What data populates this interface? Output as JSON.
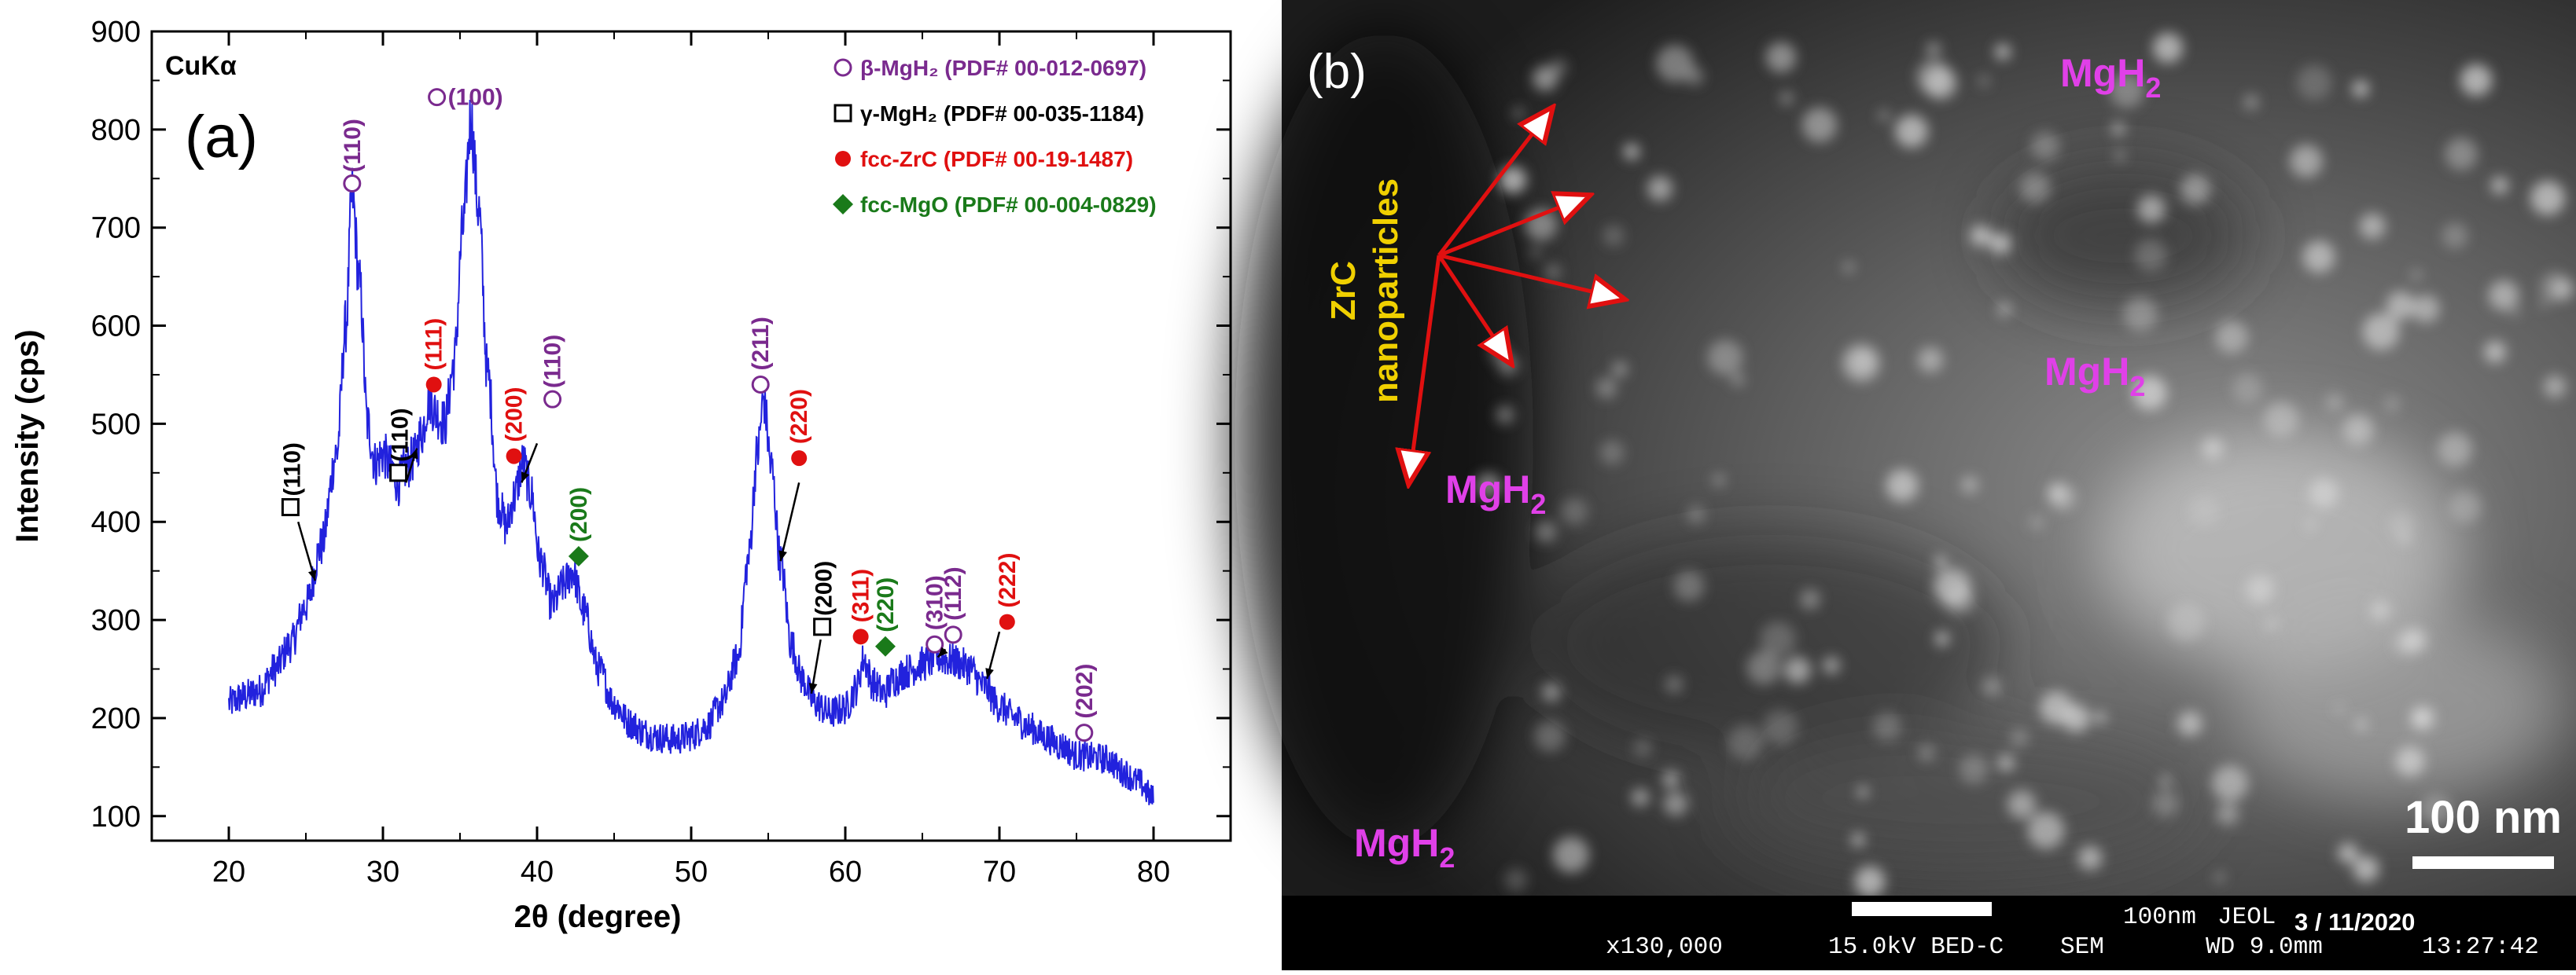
{
  "chart_data": {
    "type": "line",
    "panel_label": "(a)",
    "source_label": "CuKα",
    "xlabel": "2θ (degree)",
    "ylabel": "Intensity (cps)",
    "xlim": [
      15,
      85
    ],
    "ylim": [
      75,
      900
    ],
    "xticks": [
      20,
      30,
      40,
      50,
      60,
      70,
      80
    ],
    "yticks": [
      100,
      200,
      300,
      400,
      500,
      600,
      700,
      800,
      900
    ],
    "grid": false,
    "series_color": "#2222dd",
    "anchors": [
      [
        20,
        215
      ],
      [
        21,
        222
      ],
      [
        22,
        228
      ],
      [
        23,
        250
      ],
      [
        24,
        275
      ],
      [
        25,
        315
      ],
      [
        26,
        375
      ],
      [
        27,
        470
      ],
      [
        27.6,
        600
      ],
      [
        28,
        735
      ],
      [
        28.5,
        640
      ],
      [
        29,
        500
      ],
      [
        29.5,
        460
      ],
      [
        30,
        470
      ],
      [
        30.5,
        455
      ],
      [
        31,
        440
      ],
      [
        31.5,
        455
      ],
      [
        32,
        465
      ],
      [
        32.5,
        490
      ],
      [
        33,
        525
      ],
      [
        33.5,
        510
      ],
      [
        34,
        500
      ],
      [
        34.6,
        560
      ],
      [
        35.2,
        700
      ],
      [
        35.7,
        810
      ],
      [
        36.2,
        720
      ],
      [
        36.8,
        550
      ],
      [
        37.5,
        420
      ],
      [
        38,
        395
      ],
      [
        38.5,
        425
      ],
      [
        39.1,
        460
      ],
      [
        39.6,
        430
      ],
      [
        40.2,
        360
      ],
      [
        41,
        315
      ],
      [
        41.7,
        335
      ],
      [
        42.3,
        350
      ],
      [
        43,
        310
      ],
      [
        44,
        250
      ],
      [
        45,
        215
      ],
      [
        46,
        195
      ],
      [
        47,
        185
      ],
      [
        48,
        180
      ],
      [
        49,
        178
      ],
      [
        50,
        182
      ],
      [
        51,
        192
      ],
      [
        52,
        215
      ],
      [
        53,
        260
      ],
      [
        53.7,
        360
      ],
      [
        54.3,
        470
      ],
      [
        54.7,
        525
      ],
      [
        55.2,
        455
      ],
      [
        55.8,
        360
      ],
      [
        56.5,
        275
      ],
      [
        57.2,
        240
      ],
      [
        58,
        215
      ],
      [
        59,
        205
      ],
      [
        60,
        210
      ],
      [
        60.7,
        230
      ],
      [
        61.2,
        260
      ],
      [
        61.8,
        235
      ],
      [
        62.5,
        225
      ],
      [
        63.2,
        240
      ],
      [
        64,
        248
      ],
      [
        65,
        255
      ],
      [
        66,
        262
      ],
      [
        67,
        258
      ],
      [
        68,
        252
      ],
      [
        69,
        232
      ],
      [
        70,
        212
      ],
      [
        71,
        200
      ],
      [
        72,
        190
      ],
      [
        73,
        180
      ],
      [
        74,
        172
      ],
      [
        75,
        162
      ],
      [
        76,
        160
      ],
      [
        77,
        158
      ],
      [
        78,
        145
      ],
      [
        79,
        135
      ],
      [
        80,
        118
      ]
    ],
    "legend": {
      "placement": "top-right",
      "entries": [
        {
          "symbol": "circle-open",
          "text": "β-MgH₂ (PDF# 00-012-0697)",
          "color": "#7a2a8e"
        },
        {
          "symbol": "square-open",
          "text": "γ-MgH₂ (PDF# 00-035-1184)",
          "color": "#000000"
        },
        {
          "symbol": "circle-filled",
          "text": "fcc-ZrC (PDF# 00-19-1487)",
          "color": "#e01010"
        },
        {
          "symbol": "diamond-filled",
          "text": "fcc-MgO (PDF# 00-004-0829)",
          "color": "#1a7a1a"
        }
      ]
    },
    "peak_labels": [
      {
        "phase": "beta",
        "text": "(110)",
        "x": 28,
        "y": 745,
        "color": "#7a2a8e"
      },
      {
        "phase": "beta",
        "text": "(100)",
        "x": 33.5,
        "y": 833,
        "color": "#7a2a8e"
      },
      {
        "phase": "beta",
        "text": "(110)",
        "x": 41,
        "y": 525,
        "color": "#7a2a8e"
      },
      {
        "phase": "beta",
        "text": "(211)",
        "x": 54.5,
        "y": 540,
        "color": "#7a2a8e"
      },
      {
        "phase": "beta",
        "text": "(310)",
        "x": 65.8,
        "y": 275,
        "color": "#7a2a8e"
      },
      {
        "phase": "beta",
        "text": "(112)",
        "x": 67,
        "y": 285,
        "color": "#7a2a8e"
      },
      {
        "phase": "beta",
        "text": "(202)",
        "x": 75.5,
        "y": 185,
        "color": "#7a2a8e"
      },
      {
        "phase": "gamma",
        "text": "(110)",
        "x": 24,
        "y": 415,
        "color": "#000000"
      },
      {
        "phase": "gamma",
        "text": "(110)",
        "x": 31,
        "y": 450,
        "color": "#000000"
      },
      {
        "phase": "gamma",
        "text": "(200)",
        "x": 58.5,
        "y": 293,
        "color": "#000000"
      },
      {
        "phase": "zrc",
        "text": "(111)",
        "x": 33.3,
        "y": 540,
        "color": "#e01010"
      },
      {
        "phase": "zrc",
        "text": "(200)",
        "x": 38.5,
        "y": 467,
        "color": "#e01010"
      },
      {
        "phase": "zrc",
        "text": "(220)",
        "x": 57,
        "y": 465,
        "color": "#e01010"
      },
      {
        "phase": "zrc",
        "text": "(311)",
        "x": 61,
        "y": 283,
        "color": "#e01010"
      },
      {
        "phase": "zrc",
        "text": "(222)",
        "x": 70.5,
        "y": 298,
        "color": "#e01010"
      },
      {
        "phase": "mgo",
        "text": "(200)",
        "x": 42.7,
        "y": 365,
        "color": "#1a7a1a"
      },
      {
        "phase": "mgo",
        "text": "(220)",
        "x": 62.6,
        "y": 273,
        "color": "#1a7a1a"
      }
    ]
  },
  "sem": {
    "panel_label": "(b)",
    "annotation_line1": "ZrC",
    "annotation_line2": "nanoparticles",
    "mgh2_base": "MgH",
    "mgh2_sub": "2",
    "scale_label": "100 nm",
    "footer": {
      "scale_text": "100nm",
      "maker": "JEOL",
      "date": "3 / 11/2020",
      "magnification": "x130,000",
      "voltage": "15.0kV BED-C",
      "mode": "SEM",
      "wd": "WD 9.0mm",
      "time": "13:27:42"
    }
  }
}
